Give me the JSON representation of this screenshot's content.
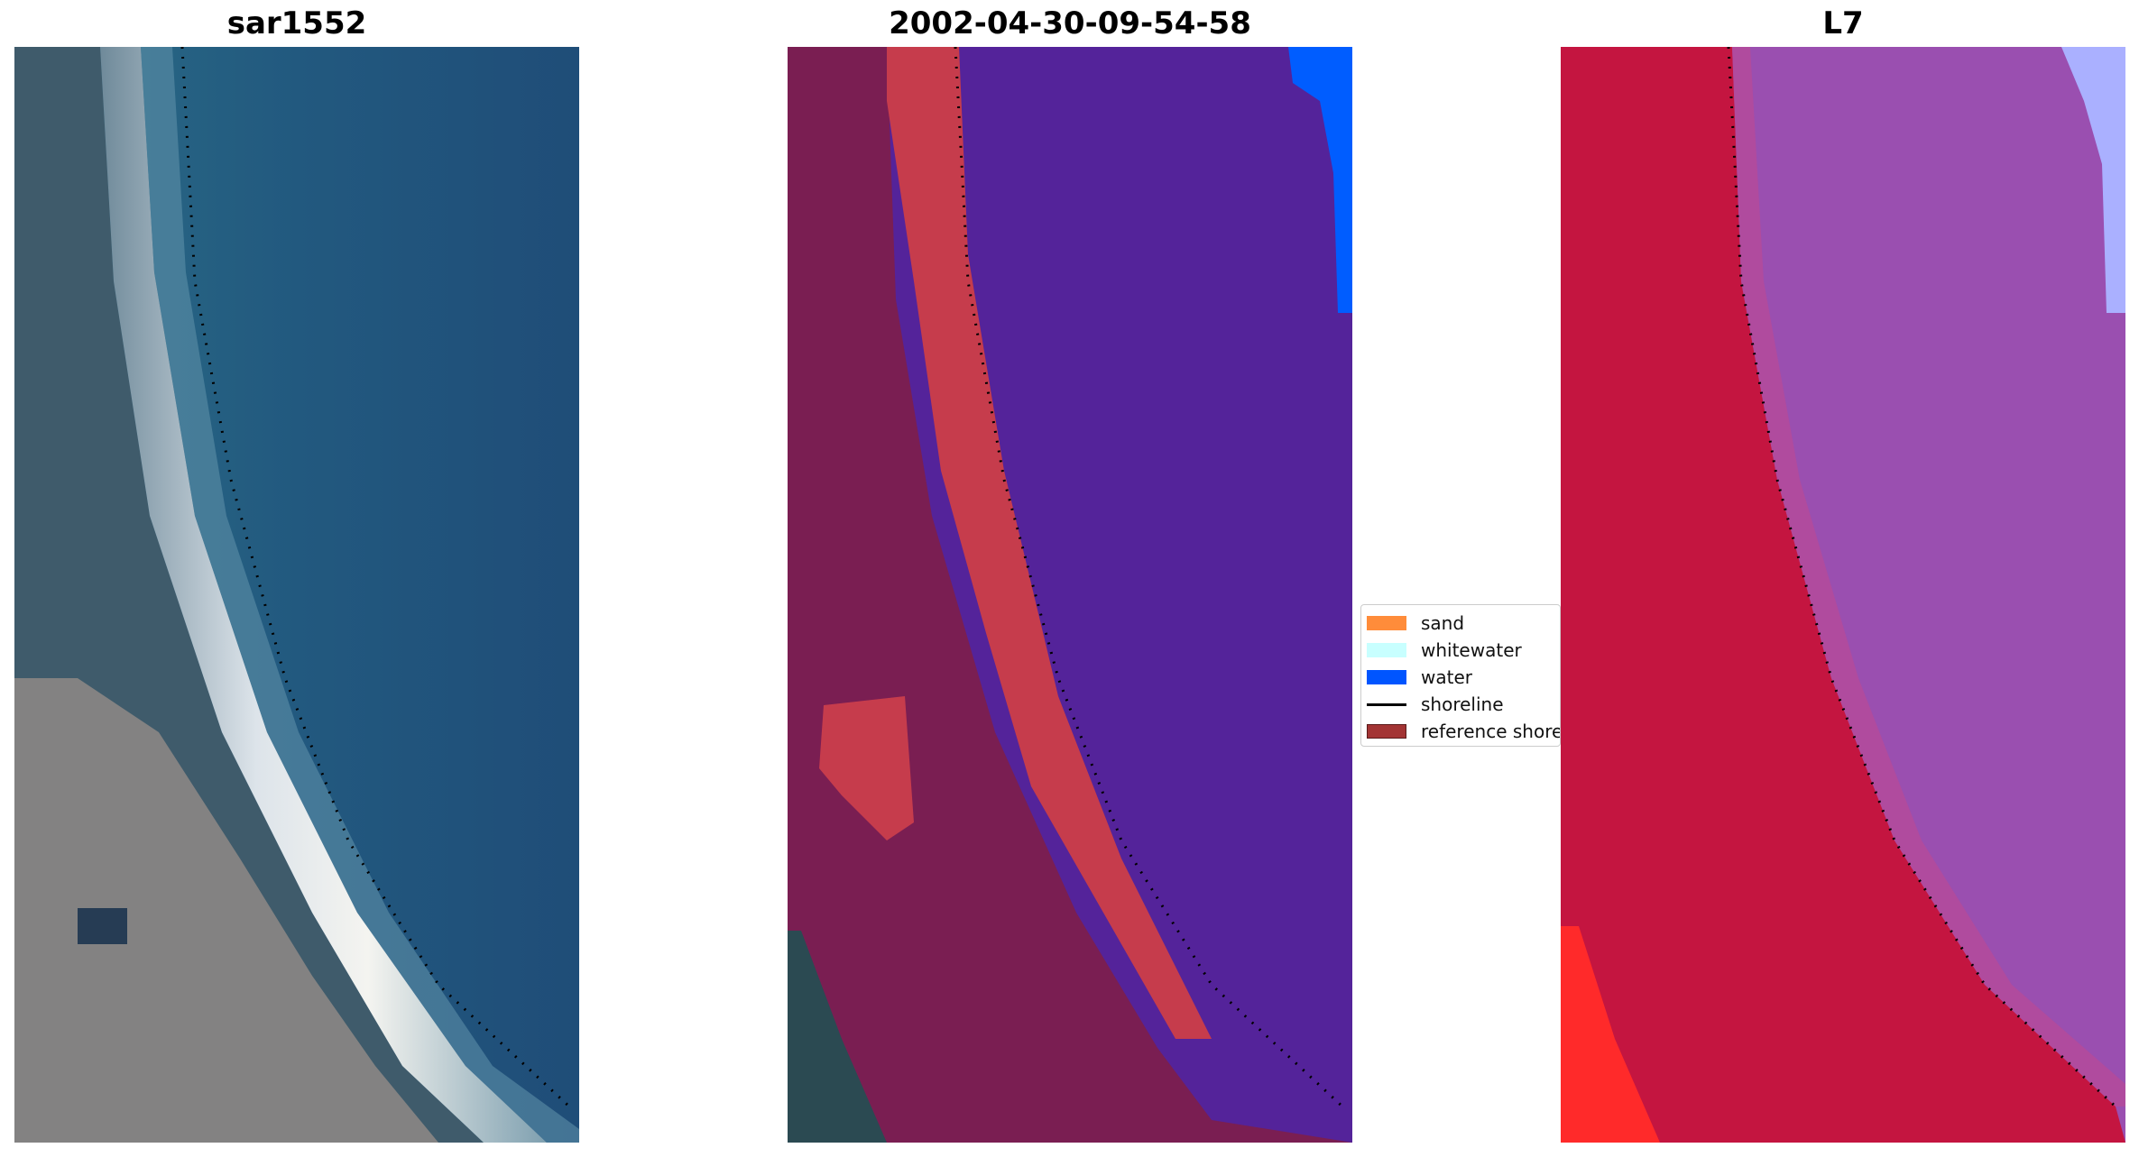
{
  "panels": [
    {
      "title": "sar1552"
    },
    {
      "title": "2002-04-30-09-54-58"
    },
    {
      "title": "L7"
    }
  ],
  "legend": {
    "items": [
      {
        "label": "sand",
        "color": "#ff8c3a",
        "kind": "patch"
      },
      {
        "label": "whitewater",
        "color": "#c8ffff",
        "kind": "patch"
      },
      {
        "label": "water",
        "color": "#0055ff",
        "kind": "patch"
      },
      {
        "label": "shoreline",
        "color": "#000000",
        "kind": "line"
      },
      {
        "label": "reference shoreline",
        "color": "#a33434",
        "kind": "patch"
      }
    ]
  },
  "colors": {
    "rgb_water": "#22557e",
    "rgb_sand": "#e6ecf2",
    "rgb_land": "#3e5a6a",
    "class_water": "#54239a",
    "class_land": "#7a1e52",
    "class_sand": "#c63c4c",
    "class_water_bright": "#005dff",
    "swir_land": "#c41540",
    "swir_water": "#9a4fb0",
    "swir_edge": "#aab0ff"
  }
}
